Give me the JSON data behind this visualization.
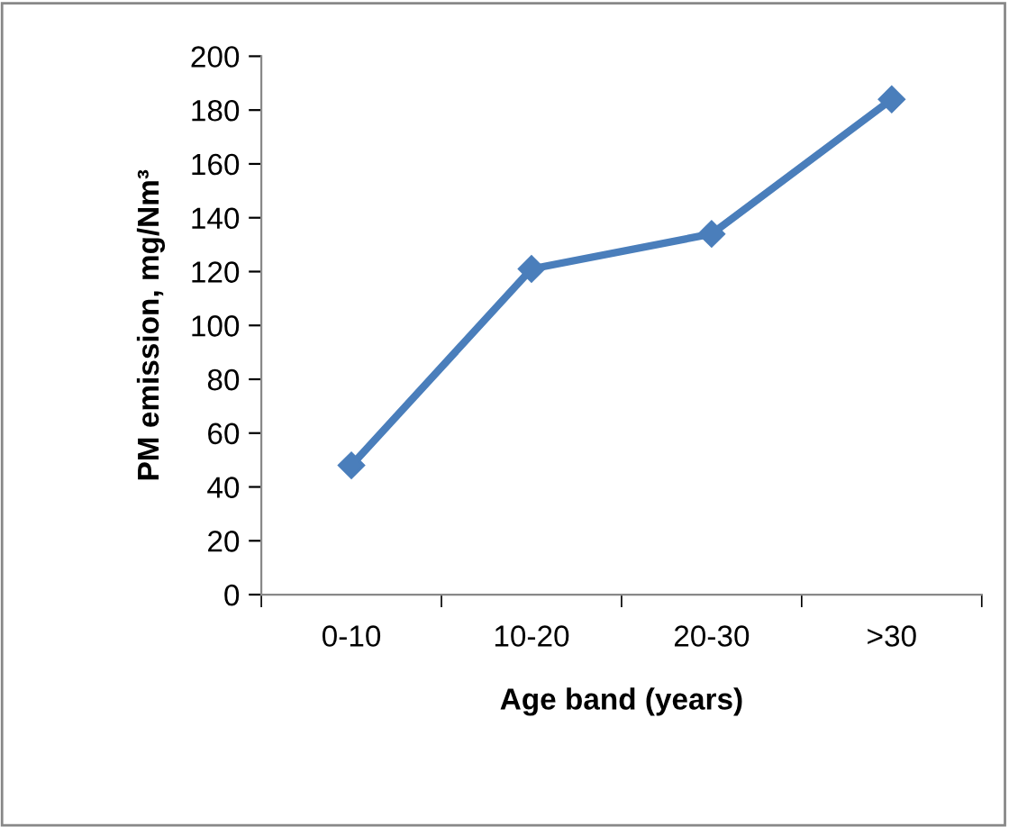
{
  "chart_data": {
    "type": "line",
    "xlabel": "Age band (years)",
    "ylabel": "PM emission, mg/Nm³",
    "categories": [
      "0-10",
      "10-20",
      "20-30",
      ">30"
    ],
    "series": [
      {
        "color": "#4a7ebb",
        "values": [
          48,
          121,
          134,
          184
        ]
      }
    ],
    "ylim": [
      0,
      200
    ],
    "yticks": [
      0,
      20,
      40,
      60,
      80,
      100,
      120,
      140,
      160,
      180,
      200
    ],
    "marker": "diamond",
    "line_style": "solid",
    "grid": false,
    "legend": false
  }
}
